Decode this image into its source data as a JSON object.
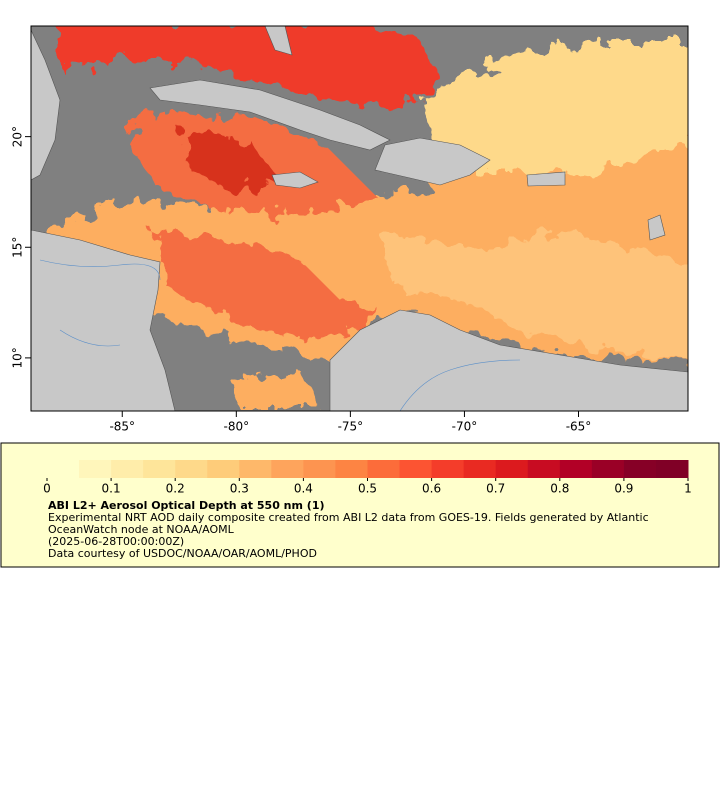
{
  "map": {
    "xlim": [
      -89,
      -60.2
    ],
    "ylim": [
      7.6,
      25
    ],
    "xticks": [
      {
        "value": -85,
        "label": "-85°"
      },
      {
        "value": -80,
        "label": "-80°"
      },
      {
        "value": -75,
        "label": "-75°"
      },
      {
        "value": -70,
        "label": "-70°"
      },
      {
        "value": -65,
        "label": "-65°"
      }
    ],
    "yticks": [
      {
        "value": 10,
        "label": "10°"
      },
      {
        "value": 15,
        "label": "15°"
      },
      {
        "value": 20,
        "label": "20°"
      }
    ]
  },
  "colorbar": {
    "lim": [
      0,
      1
    ],
    "ticks": [
      0,
      0.1,
      0.2,
      0.3,
      0.4,
      0.5,
      0.6,
      0.7,
      0.8,
      0.9,
      1
    ],
    "colors": [
      "#ffffcc",
      "#fff6bb",
      "#ffedaa",
      "#fee59a",
      "#fed98a",
      "#fecc7a",
      "#feb86a",
      "#fea45c",
      "#fd9450",
      "#fd8443",
      "#fc6c3a",
      "#fc5432",
      "#f43d2a",
      "#e92a22",
      "#dc1a1e",
      "#c80c22",
      "#b20026",
      "#9a0026",
      "#860026",
      "#800026"
    ]
  },
  "legend": {
    "title": "ABI L2+ Aerosol Optical Depth at 550 nm (1)",
    "lines": [
      "Experimental NRT AOD daily composite created from ABI L2 data from GOES-19. Fields generated by Atlantic OceanWatch node at NOAA/AOML",
      "(2025-06-28T00:00:00Z)",
      "Data courtesy of USDOC/NOAA/OAR/AOML/PHOD"
    ]
  }
}
